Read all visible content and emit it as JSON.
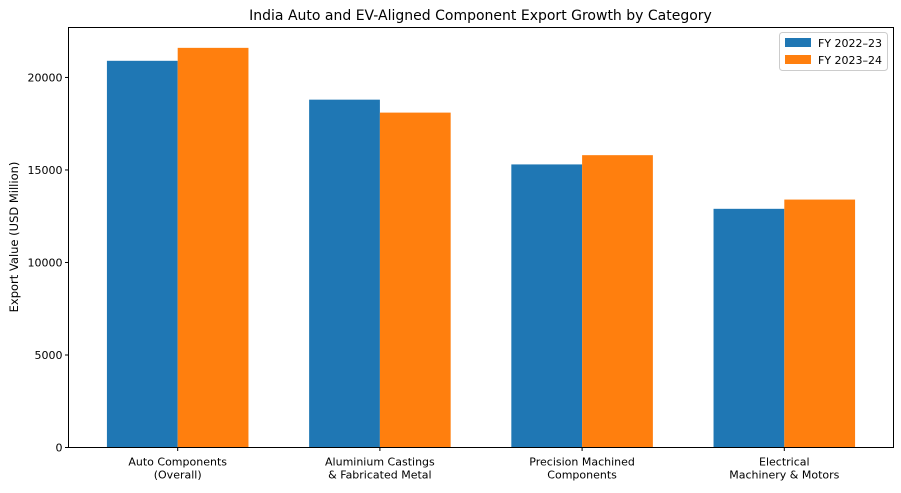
{
  "chart_data": {
    "type": "bar",
    "title": "India Auto and EV-Aligned Component Export Growth by Category",
    "xlabel": "",
    "ylabel": "Export Value (USD Million)",
    "categories": [
      [
        "Auto Components",
        "(Overall)"
      ],
      [
        "Aluminium Castings",
        "& Fabricated Metal"
      ],
      [
        "Precision Machined",
        "Components"
      ],
      [
        "Electrical",
        "Machinery & Motors"
      ]
    ],
    "series": [
      {
        "name": "FY 2022–23",
        "color": "#1f77b4",
        "values": [
          20900,
          18800,
          15300,
          12900
        ]
      },
      {
        "name": "FY 2023–24",
        "color": "#ff7f0e",
        "values": [
          21600,
          18100,
          15800,
          13400
        ]
      }
    ],
    "ylim": [
      0,
      22700
    ],
    "yticks": [
      0,
      5000,
      10000,
      15000,
      20000
    ],
    "grid": false,
    "legend": "top-right"
  }
}
